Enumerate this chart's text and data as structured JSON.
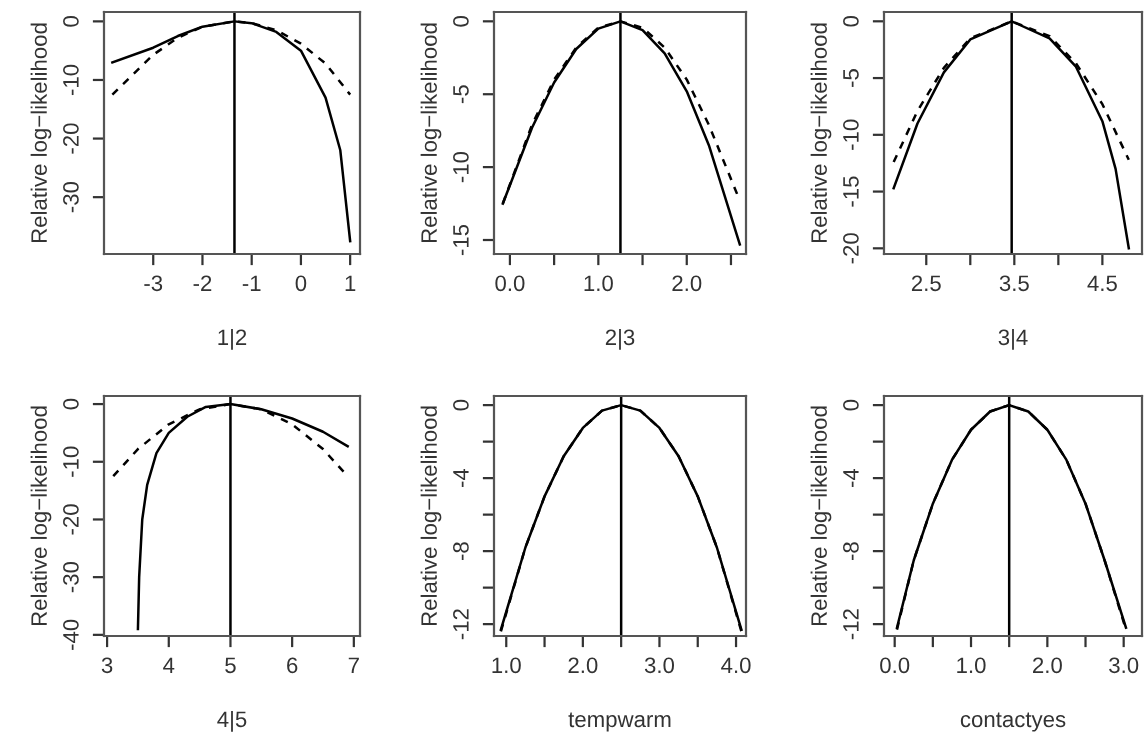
{
  "chart_data": [
    {
      "type": "line",
      "xlabel": "1|2",
      "ylabel": "Relative log−likelihood",
      "xlim": [
        -4.0,
        1.2
      ],
      "ylim": [
        -39.7,
        1.6
      ],
      "xticks": [
        -3,
        -2,
        -1,
        0,
        1
      ],
      "yticks": [
        0,
        -10,
        -20,
        -30
      ],
      "grid": false,
      "marker": "none",
      "ref_lines": [
        {
          "axis": "x",
          "value": -1.35,
          "color": "#000000"
        }
      ],
      "series": [
        {
          "color": "#000000",
          "line_style": "solid",
          "x": [
            -3.83,
            -3.0,
            -2.5,
            -2.0,
            -1.35,
            -1.0,
            -0.5,
            0,
            0.5,
            0.8,
            1.0
          ],
          "values": [
            -7.0,
            -4.5,
            -2.5,
            -0.9,
            0,
            -0.3,
            -1.8,
            -5,
            -13,
            -22,
            -37.5
          ]
        },
        {
          "color": "#000000",
          "line_style": "dashed",
          "x": [
            -3.83,
            -3.0,
            -2.5,
            -2.0,
            -1.35,
            -1.0,
            -0.5,
            0,
            0.5,
            1.0
          ],
          "values": [
            -12.5,
            -5.7,
            -2.8,
            -0.9,
            0,
            -0.3,
            -1.5,
            -3.8,
            -7.2,
            -12.5
          ]
        }
      ]
    },
    {
      "type": "line",
      "xlabel": "2|3",
      "ylabel": "Relative log−likelihood",
      "xlim": [
        -0.18,
        2.67
      ],
      "ylim": [
        -15.96,
        0.64
      ],
      "xticks": [
        {
          "value": 0,
          "label": "0.0"
        },
        {
          "value": 0.5,
          "label": null
        },
        {
          "value": 1,
          "label": "1.0"
        },
        {
          "value": 1.5,
          "label": null
        },
        {
          "value": 2,
          "label": "2.0"
        },
        {
          "value": 2.5,
          "label": null
        }
      ],
      "yticks": [
        0,
        -5,
        -10,
        -15
      ],
      "grid": false,
      "marker": "none",
      "ref_lines": [
        {
          "axis": "x",
          "value": 1.25,
          "color": "#000000"
        }
      ],
      "series": [
        {
          "color": "#000000",
          "line_style": "solid",
          "x": [
            -0.08,
            0.25,
            0.5,
            0.75,
            1.0,
            1.25,
            1.5,
            1.75,
            2.0,
            2.25,
            2.6
          ],
          "values": [
            -12.5,
            -7.3,
            -4.2,
            -1.9,
            -0.5,
            0,
            -0.6,
            -2.2,
            -4.8,
            -8.5,
            -15.3
          ]
        },
        {
          "color": "#000000",
          "line_style": "dashed",
          "x": [
            -0.08,
            0.25,
            0.5,
            0.75,
            1.0,
            1.25,
            1.5,
            1.75,
            2.0,
            2.25,
            2.6
          ],
          "values": [
            -12.5,
            -7.1,
            -4.0,
            -1.8,
            -0.44,
            0,
            -0.44,
            -1.8,
            -4.0,
            -7.1,
            -12.3
          ]
        }
      ]
    },
    {
      "type": "line",
      "xlabel": "3|4",
      "ylabel": "Relative log−likelihood",
      "xlim": [
        2.02,
        4.95
      ],
      "ylim": [
        -20.5,
        0.82
      ],
      "xticks": [
        {
          "value": 2.5,
          "label": "2.5"
        },
        {
          "value": 3.0,
          "label": null
        },
        {
          "value": 3.5,
          "label": "3.5"
        },
        {
          "value": 4.0,
          "label": null
        },
        {
          "value": 4.5,
          "label": "4.5"
        }
      ],
      "yticks": [
        0,
        -5,
        -10,
        -15,
        -20
      ],
      "grid": false,
      "marker": "none",
      "ref_lines": [
        {
          "axis": "x",
          "value": 3.47,
          "color": "#000000"
        }
      ],
      "series": [
        {
          "color": "#000000",
          "line_style": "solid",
          "x": [
            2.13,
            2.4,
            2.7,
            3.0,
            3.47,
            3.9,
            4.2,
            4.5,
            4.65,
            4.8
          ],
          "values": [
            -14.7,
            -9,
            -4.5,
            -1.6,
            0,
            -1.5,
            -4.0,
            -8.8,
            -13,
            -20
          ]
        },
        {
          "color": "#000000",
          "line_style": "dashed",
          "x": [
            2.13,
            2.4,
            2.7,
            3.0,
            3.47,
            3.9,
            4.2,
            4.5,
            4.8
          ],
          "values": [
            -12.4,
            -7.9,
            -4.1,
            -1.5,
            0,
            -1.3,
            -3.7,
            -7.3,
            -12.2
          ]
        }
      ]
    },
    {
      "type": "line",
      "xlabel": "4|5",
      "ylabel": "Relative log−likelihood",
      "xlim": [
        2.95,
        7.1
      ],
      "ylim": [
        -40.2,
        1.4
      ],
      "xticks": [
        3,
        4,
        5,
        6,
        7
      ],
      "yticks": [
        0,
        -10,
        -20,
        -30,
        -40
      ],
      "grid": false,
      "marker": "none",
      "ref_lines": [
        {
          "axis": "x",
          "value": 5.0,
          "color": "#000000"
        }
      ],
      "series": [
        {
          "color": "#000000",
          "line_style": "solid",
          "x": [
            3.5,
            3.52,
            3.57,
            3.65,
            3.8,
            4.0,
            4.3,
            4.6,
            5.0,
            5.5,
            6.0,
            6.5,
            6.9
          ],
          "values": [
            -39,
            -30,
            -20,
            -14,
            -8.5,
            -5,
            -2.2,
            -0.5,
            0,
            -0.9,
            -2.5,
            -4.8,
            -7.3
          ]
        },
        {
          "color": "#000000",
          "line_style": "dashed",
          "x": [
            3.1,
            3.5,
            4.0,
            4.5,
            5.0,
            5.5,
            6.0,
            6.5,
            6.9
          ],
          "values": [
            -12.5,
            -7.8,
            -3.5,
            -0.9,
            0,
            -0.9,
            -3.5,
            -7.8,
            -12.5
          ]
        }
      ]
    },
    {
      "type": "line",
      "xlabel": "tempwarm",
      "ylabel": "Relative log−likelihood",
      "xlim": [
        0.84,
        4.13
      ],
      "ylim": [
        -12.65,
        0.5
      ],
      "xticks": [
        {
          "value": 1.0,
          "label": "1.0"
        },
        {
          "value": 1.5,
          "label": null
        },
        {
          "value": 2.0,
          "label": "2.0"
        },
        {
          "value": 2.5,
          "label": null
        },
        {
          "value": 3.0,
          "label": "3.0"
        },
        {
          "value": 3.5,
          "label": null
        },
        {
          "value": 4.0,
          "label": "4.0"
        }
      ],
      "yticks": [
        0,
        {
          "value": -2,
          "label": null
        },
        -4,
        {
          "value": -6,
          "label": null
        },
        -8,
        {
          "value": -10,
          "label": null
        },
        -12
      ],
      "grid": false,
      "marker": "none",
      "ref_lines": [
        {
          "axis": "x",
          "value": 2.5,
          "color": "#000000"
        }
      ],
      "series": [
        {
          "color": "#000000",
          "line_style": "solid",
          "x": [
            0.93,
            1.25,
            1.5,
            1.75,
            2.0,
            2.25,
            2.5,
            2.75,
            3.0,
            3.25,
            3.5,
            3.75,
            4.07
          ],
          "values": [
            -12.3,
            -7.8,
            -5.0,
            -2.8,
            -1.25,
            -0.3,
            0,
            -0.3,
            -1.25,
            -2.8,
            -5.0,
            -7.8,
            -12.3
          ]
        },
        {
          "color": "#000000",
          "line_style": "dashed",
          "x": [
            0.93,
            1.25,
            1.5,
            1.75,
            2.0,
            2.25,
            2.5,
            2.75,
            3.0,
            3.25,
            3.5,
            3.75,
            4.07
          ],
          "values": [
            -12.4,
            -7.8,
            -5.0,
            -2.8,
            -1.25,
            -0.3,
            0,
            -0.3,
            -1.25,
            -2.8,
            -5.0,
            -7.8,
            -12.4
          ]
        }
      ]
    },
    {
      "type": "line",
      "xlabel": "contactyes",
      "ylabel": "Relative log−likelihood",
      "xlim": [
        -0.14,
        3.24
      ],
      "ylim": [
        -12.65,
        0.5
      ],
      "xticks": [
        {
          "value": 0.0,
          "label": "0.0"
        },
        {
          "value": 0.5,
          "label": null
        },
        {
          "value": 1.0,
          "label": "1.0"
        },
        {
          "value": 1.5,
          "label": null
        },
        {
          "value": 2.0,
          "label": "2.0"
        },
        {
          "value": 2.5,
          "label": null
        },
        {
          "value": 3.0,
          "label": "3.0"
        }
      ],
      "yticks": [
        0,
        {
          "value": -2,
          "label": null
        },
        -4,
        {
          "value": -6,
          "label": null
        },
        -8,
        {
          "value": -10,
          "label": null
        },
        -12
      ],
      "grid": false,
      "marker": "none",
      "ref_lines": [
        {
          "axis": "x",
          "value": 1.5,
          "color": "#000000"
        }
      ],
      "series": [
        {
          "color": "#000000",
          "line_style": "solid",
          "x": [
            0.03,
            0.25,
            0.5,
            0.75,
            1.0,
            1.25,
            1.5,
            1.75,
            2.0,
            2.25,
            2.5,
            2.75,
            3.03
          ],
          "values": [
            -12.2,
            -8.5,
            -5.4,
            -3.0,
            -1.35,
            -0.35,
            0,
            -0.35,
            -1.35,
            -3.0,
            -5.4,
            -8.5,
            -12.2
          ]
        },
        {
          "color": "#000000",
          "line_style": "dashed",
          "x": [
            0.03,
            0.25,
            0.5,
            0.75,
            1.0,
            1.25,
            1.5,
            1.75,
            2.0,
            2.25,
            2.5,
            2.75,
            3.03
          ],
          "values": [
            -12.3,
            -8.5,
            -5.4,
            -3.0,
            -1.35,
            -0.35,
            0,
            -0.35,
            -1.35,
            -3.0,
            -5.4,
            -8.5,
            -12.3
          ]
        }
      ]
    }
  ]
}
